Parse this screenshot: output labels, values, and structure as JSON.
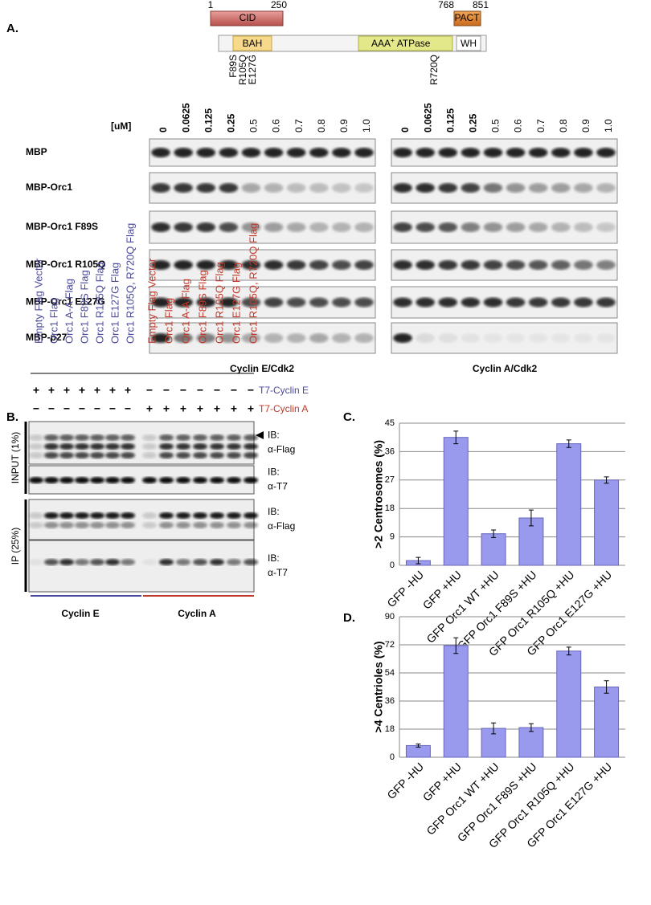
{
  "panel_a": {
    "label": "A.",
    "domain_map": {
      "positions": [
        "1",
        "250",
        "768",
        "851"
      ],
      "cid": "CID",
      "pact": "PACT",
      "bah": "BAH",
      "aaa": "AAA",
      "aaa_sup": "+",
      "aaa_rest": "ATPase",
      "wh": "WH",
      "mutations": [
        "F89S",
        "R105Q",
        "E127G",
        "R720Q"
      ]
    },
    "unit": "[uM]",
    "concentrations": [
      "0",
      "0.0625",
      "0.125",
      "0.25",
      "0.5",
      "0.6",
      "0.7",
      "0.8",
      "0.9",
      "1.0"
    ],
    "rows": [
      "MBP",
      "MBP-Orc1",
      "MBP-Orc1 F89S",
      "MBP-Orc1 R105Q",
      "MBP-Orc1 E127G",
      "MBP-p27"
    ],
    "kinases": [
      "Cyclin E/Cdk2",
      "Cyclin A/Cdk2"
    ]
  },
  "panel_b": {
    "label": "B.",
    "lanes_cyclin_e": [
      "Empty Flag Vector",
      "Orc1 Flag",
      "Orc1 A-A Flag",
      "Orc1 F89S Flag",
      "Orc1 R105Q Flag",
      "Orc1 E127G Flag",
      "Orc1 R105Q, R720Q Flag"
    ],
    "lanes_cyclin_a": [
      "Empty Flag Vector",
      "Orc1 Flag",
      "Orc1 A-A Flag",
      "Orc1 F89S Flag",
      "Orc1 R105Q Flag",
      "Orc1 E127G Flag",
      "Orc1 R105Q, R720Q Flag"
    ],
    "cyclin_e_row": {
      "label": "T7-Cyclin E",
      "signs": [
        "+",
        "+",
        "+",
        "+",
        "+",
        "+",
        "+",
        "−",
        "−",
        "−",
        "−",
        "−",
        "−",
        "−"
      ]
    },
    "cyclin_a_row": {
      "label": "T7-Cyclin A",
      "signs": [
        "−",
        "−",
        "−",
        "−",
        "−",
        "−",
        "−",
        "+",
        "+",
        "+",
        "+",
        "+",
        "+",
        "+"
      ]
    },
    "input": "INPUT (1%)",
    "ip": "IP (25%)",
    "blots": [
      {
        "ib": "IB:",
        "antibody": "α-Flag"
      },
      {
        "ib": "IB:",
        "antibody": "α-T7"
      },
      {
        "ib": "IB:",
        "antibody": "α-Flag"
      },
      {
        "ib": "IB:",
        "antibody": "α-T7"
      }
    ],
    "groups": [
      "Cyclin E",
      "Cyclin A"
    ]
  },
  "chart_data": [
    {
      "type": "bar",
      "panel_label": "C.",
      "y_label": ">2 Centrosomes (%)",
      "categories": [
        "GFP -HU",
        "GFP +HU",
        "GFP Orc1 WT +HU",
        "GFP Orc1 F89S +HU",
        "GFP Orc1 R105Q +HU",
        "GFP Orc1 E127G +HU"
      ],
      "values": [
        1.5,
        40.5,
        10,
        15,
        38.5,
        27
      ],
      "errors": [
        1,
        2,
        1.2,
        2.5,
        1.2,
        1
      ],
      "color": "#9999ee",
      "ylim": [
        0,
        45
      ],
      "yticks": [
        0,
        9,
        18,
        27,
        36,
        45
      ],
      "grid": true
    },
    {
      "type": "bar",
      "panel_label": "D.",
      "y_label": ">4 Centrioles (%)",
      "categories": [
        "GFP -HU",
        "GFP +HU",
        "GFP Orc1 WT +HU",
        "GFP Orc1 F89S +HU",
        "GFP Orc1 R105Q +HU",
        "GFP Orc1 E127G +HU"
      ],
      "values": [
        7.5,
        71.5,
        18.5,
        19,
        68,
        45
      ],
      "errors": [
        1,
        5,
        3.5,
        2.5,
        2.5,
        4
      ],
      "color": "#9999ee",
      "ylim": [
        0,
        90
      ],
      "yticks": [
        0,
        18,
        36,
        54,
        72,
        90
      ],
      "grid": true
    }
  ]
}
